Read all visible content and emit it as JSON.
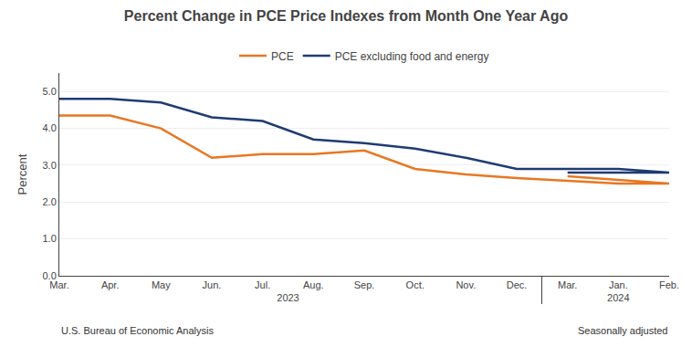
{
  "chart_data": {
    "type": "line",
    "title": "Percent Change in PCE Price Indexes from Month One Year Ago",
    "ylabel": "Percent",
    "categories": [
      [
        "2023",
        "Mar."
      ],
      [
        "2023",
        "Apr."
      ],
      [
        "2023",
        "May"
      ],
      [
        "2023",
        "Jun."
      ],
      [
        "2023",
        "Jul."
      ],
      [
        "2023",
        "Aug."
      ],
      [
        "2023",
        "Sep."
      ],
      [
        "2023",
        "Oct."
      ],
      [
        "2023",
        "Nov."
      ],
      [
        "2023",
        "Dec."
      ],
      [
        "2024",
        "Jan."
      ],
      [
        "2024",
        "Feb."
      ],
      [
        "2024",
        "Mar."
      ]
    ],
    "series": [
      {
        "name": "PCE",
        "color": "#E87722",
        "values": [
          4.35,
          4.35,
          4.0,
          3.2,
          3.3,
          3.3,
          3.4,
          2.9,
          2.75,
          2.65,
          2.5,
          2.5,
          2.7
        ]
      },
      {
        "name": "PCE excluding food and energy",
        "color": "#1F3B73",
        "values": [
          4.8,
          4.8,
          4.7,
          4.3,
          4.2,
          3.7,
          3.6,
          3.45,
          3.2,
          2.9,
          2.9,
          2.8,
          2.8
        ]
      }
    ],
    "ylim": [
      0.0,
      5.5
    ],
    "yticks": [
      {
        "value": 0.0,
        "label": "0.0"
      },
      {
        "value": 1.0,
        "label": "1.0"
      },
      {
        "value": 2.0,
        "label": "2.0"
      },
      {
        "value": 3.0,
        "label": "3.0"
      },
      {
        "value": 4.0,
        "label": "4.0"
      },
      {
        "value": 5.0,
        "label": "5.0"
      }
    ],
    "grid": true,
    "legend": "top",
    "annotations": [
      "U.S. Bureau of Economic Analysis",
      "Seasonally adjusted"
    ]
  }
}
